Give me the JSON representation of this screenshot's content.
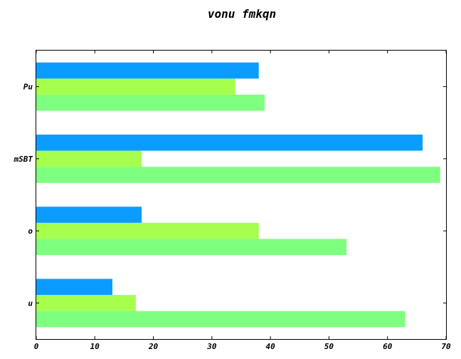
{
  "chart_data": {
    "type": "bar",
    "orientation": "horizontal",
    "title": "vonu fmkqn",
    "xlabel": "",
    "ylabel": "",
    "categories": [
      "u",
      "o",
      "mSBT",
      "Pu"
    ],
    "series": [
      {
        "color": "#7fff7f",
        "values": [
          63,
          53,
          69,
          39
        ]
      },
      {
        "color": "#a6ff4d",
        "values": [
          17,
          38,
          18,
          34
        ]
      },
      {
        "color": "#0a9dff",
        "values": [
          13,
          18,
          66,
          38
        ]
      }
    ],
    "xlim": [
      0,
      70
    ],
    "xticks": [
      0,
      10,
      20,
      30,
      40,
      50,
      60,
      70
    ],
    "grid": false,
    "legend": "none"
  }
}
